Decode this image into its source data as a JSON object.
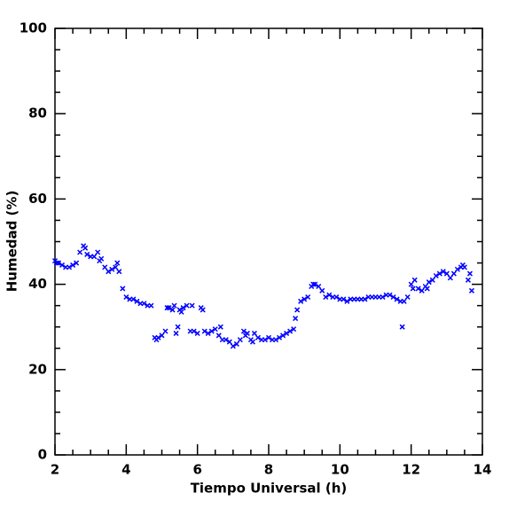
{
  "chart_data": {
    "type": "scatter",
    "xlabel": "Tiempo Universal (h)",
    "ylabel": "Humedad (%)",
    "color": "#0000ff",
    "xlim": [
      2,
      14
    ],
    "ylim": [
      0,
      100
    ],
    "xticks": [
      2,
      4,
      6,
      8,
      10,
      12,
      14
    ],
    "yticks": [
      0,
      20,
      40,
      60,
      80,
      100
    ],
    "xminorticks": [
      2.5,
      3,
      3.5,
      4.5,
      5,
      5.5,
      6.5,
      7,
      7.5,
      8.5,
      9,
      9.5,
      10.5,
      11,
      11.5,
      12.5,
      13,
      13.5
    ],
    "yminorticks": [
      5,
      10,
      15,
      25,
      30,
      35,
      45,
      50,
      55,
      65,
      70,
      75,
      85,
      90,
      95
    ],
    "series": [
      {
        "name": "Humedad",
        "x": [
          2.0,
          2.1,
          2.2,
          2.3,
          2.4,
          2.5,
          2.6,
          2.7,
          2.8,
          2.9,
          3.0,
          3.1,
          3.2,
          3.3,
          3.4,
          3.5,
          3.6,
          3.7,
          3.8,
          3.9,
          4.0,
          4.1,
          4.2,
          4.3,
          4.4,
          4.5,
          4.6,
          4.7,
          4.8,
          4.9,
          5.0,
          5.1,
          5.2,
          5.3,
          5.4,
          5.5,
          5.6,
          5.7,
          5.8,
          5.9,
          6.0,
          6.1,
          6.2,
          6.3,
          6.4,
          6.5,
          6.6,
          6.7,
          6.8,
          6.9,
          7.0,
          7.1,
          7.2,
          7.3,
          7.4,
          7.5,
          7.6,
          7.7,
          7.8,
          7.9,
          8.0,
          8.1,
          8.2,
          8.3,
          8.4,
          8.5,
          8.6,
          8.7,
          8.8,
          8.9,
          9.0,
          9.1,
          9.2,
          9.3,
          9.4,
          9.5,
          9.6,
          9.7,
          9.8,
          9.9,
          10.0,
          10.1,
          10.2,
          10.3,
          10.4,
          10.5,
          10.6,
          10.7,
          10.8,
          10.9,
          11.0,
          11.1,
          11.2,
          11.3,
          11.4,
          11.5,
          11.6,
          11.7,
          11.8,
          11.9,
          12.0,
          12.1,
          12.2,
          12.3,
          12.4,
          12.5,
          12.6,
          12.7,
          12.8,
          12.9,
          13.0,
          13.1,
          13.2,
          13.3,
          13.4,
          13.5,
          13.6,
          13.7,
          2.05,
          2.85,
          3.25,
          3.75,
          4.85,
          5.15,
          5.45,
          5.35,
          5.55,
          5.85,
          6.15,
          6.65,
          7.35,
          7.55,
          8.75,
          9.25,
          11.75,
          12.05,
          12.45,
          13.45,
          13.65
        ],
        "values": [
          45.5,
          45,
          44.5,
          44,
          44,
          44.5,
          45,
          47.5,
          49,
          47,
          46.5,
          46.5,
          47.5,
          46,
          44,
          43,
          43.5,
          44,
          43,
          39,
          37,
          36.5,
          36.5,
          36,
          35.5,
          35.5,
          35,
          35,
          27.5,
          27.5,
          28,
          29,
          34.5,
          34,
          28.5,
          34,
          34.5,
          35,
          29,
          29,
          28.5,
          34.5,
          29,
          28.5,
          29,
          29.5,
          28,
          27,
          27,
          26.5,
          25.5,
          26,
          27,
          29,
          28.5,
          27,
          28.5,
          27.5,
          27,
          27,
          27.5,
          27,
          27,
          27.5,
          28,
          28.5,
          29,
          29.5,
          34,
          36,
          36.5,
          37,
          39.5,
          40,
          39.5,
          38.5,
          37,
          37.5,
          37,
          37,
          36.5,
          36.5,
          36,
          36.5,
          36.5,
          36.5,
          36.5,
          36.5,
          37,
          37,
          37,
          37,
          37,
          37.5,
          37.5,
          37,
          36.5,
          36,
          36,
          37,
          40,
          41,
          39,
          38.5,
          39.5,
          40.5,
          41,
          42,
          42.5,
          43,
          42.5,
          41.5,
          42.5,
          43.5,
          44,
          44,
          41,
          38.5,
          45,
          48.5,
          45.5,
          45,
          27,
          34.5,
          30,
          35,
          33.5,
          35,
          34,
          30,
          28,
          26.5,
          32,
          40,
          30,
          39,
          39,
          44.5,
          42.5
        ]
      }
    ]
  }
}
